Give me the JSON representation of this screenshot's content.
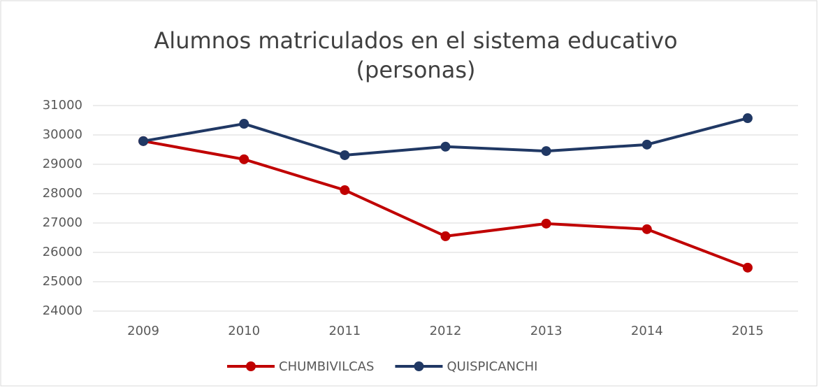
{
  "chart_data": {
    "type": "line",
    "title": [
      "Alumnos matriculados en el sistema educativo",
      "(personas)"
    ],
    "categories": [
      "2009",
      "2010",
      "2011",
      "2012",
      "2013",
      "2014",
      "2015"
    ],
    "series": [
      {
        "name": "CHUMBIVILCAS",
        "color": "#c00000",
        "values": [
          29790,
          29170,
          28120,
          26550,
          26980,
          26790,
          25480
        ]
      },
      {
        "name": "QUISPICANCHI",
        "color": "#203864",
        "values": [
          29790,
          30380,
          29310,
          29600,
          29450,
          29670,
          30570
        ]
      }
    ],
    "ylim": [
      24000,
      31000
    ],
    "yticks": [
      24000,
      25000,
      26000,
      27000,
      28000,
      29000,
      30000,
      31000
    ],
    "grid": true,
    "legend": "bottom"
  }
}
